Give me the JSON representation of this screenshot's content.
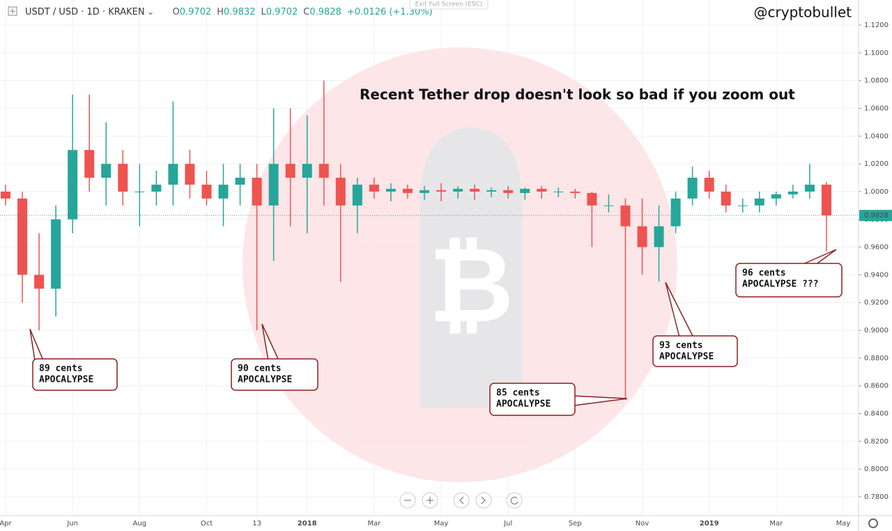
{
  "chart_data": {
    "type": "candlestick",
    "header": {
      "symbol": "USDT / USD · 1D · KRAKEN",
      "ohlc_labels": [
        "O",
        "H",
        "L",
        "C"
      ],
      "ohlc_values": [
        0.9702,
        0.9832,
        0.9702,
        0.9828
      ],
      "change": "+0.0126 (+1.30%)"
    },
    "exit_hint": "Exit Full Screen (ESC)",
    "watermark": "@cryptobullet",
    "title": "Recent Tether drop doesn't look so bad if you zoom out",
    "categories": [
      "Apr",
      null,
      null,
      null,
      "Jun",
      null,
      null,
      null,
      "Aug",
      null,
      null,
      null,
      "Oct",
      null,
      null,
      "13",
      null,
      null,
      "2018",
      null,
      null,
      null,
      "Mar",
      null,
      null,
      null,
      "May",
      null,
      null,
      null,
      "Jul",
      null,
      null,
      null,
      "Sep",
      null,
      null,
      null,
      "Nov",
      null,
      null,
      null,
      "2019",
      null,
      null,
      null,
      "Mar",
      null,
      null,
      null,
      "May"
    ],
    "open": [
      1.0,
      0.995,
      0.94,
      0.93,
      0.98,
      1.03,
      1.01,
      1.02,
      1.0,
      1.0,
      1.005,
      1.02,
      1.005,
      0.995,
      1.005,
      1.01,
      0.99,
      1.02,
      1.01,
      1.02,
      1.01,
      0.99,
      1.005,
      1.0,
      1.002,
      0.999,
      1.001,
      1.0,
      1.002,
      1.0,
      1.001,
      0.999,
      1.002,
      1.0,
      1.0,
      0.999,
      0.99,
      0.99,
      0.975,
      0.96,
      0.975,
      0.995,
      1.01,
      1.0,
      0.99,
      0.99,
      0.995,
      0.998,
      1.0,
      1.005,
      null
    ],
    "high": [
      1.005,
      1.0,
      0.97,
      0.99,
      1.07,
      1.07,
      1.05,
      1.03,
      1.02,
      1.015,
      1.065,
      1.03,
      1.015,
      1.02,
      1.02,
      1.02,
      1.06,
      1.06,
      1.055,
      1.08,
      1.02,
      1.01,
      1.01,
      1.006,
      1.005,
      1.004,
      1.006,
      1.004,
      1.005,
      1.003,
      1.004,
      1.003,
      1.004,
      1.003,
      1.002,
      1.0,
      0.998,
      0.995,
      0.995,
      0.99,
      1.0,
      1.018,
      1.015,
      1.005,
      0.995,
      1.0,
      1.0,
      1.005,
      1.02,
      1.007,
      null
    ],
    "low": [
      0.99,
      0.92,
      0.9,
      0.91,
      0.97,
      1.0,
      0.99,
      0.99,
      0.975,
      0.99,
      0.99,
      0.995,
      0.99,
      0.975,
      0.99,
      0.9,
      0.95,
      0.975,
      0.97,
      0.99,
      0.935,
      0.97,
      0.995,
      0.993,
      0.995,
      0.994,
      0.993,
      0.995,
      0.994,
      0.996,
      0.995,
      0.994,
      0.995,
      0.996,
      0.995,
      0.96,
      0.985,
      0.85,
      0.94,
      0.935,
      0.97,
      0.99,
      0.995,
      0.985,
      0.985,
      0.985,
      0.99,
      0.995,
      0.995,
      0.957,
      null
    ],
    "close": [
      0.995,
      0.94,
      0.93,
      0.98,
      1.03,
      1.01,
      1.02,
      1.0,
      1.0,
      1.005,
      1.02,
      1.005,
      0.995,
      1.005,
      1.01,
      0.99,
      1.02,
      1.01,
      1.02,
      1.01,
      0.99,
      1.005,
      1.0,
      1.002,
      0.999,
      1.001,
      1.0,
      1.002,
      1.0,
      1.001,
      0.999,
      1.002,
      1.0,
      1.0,
      0.999,
      0.99,
      0.99,
      0.975,
      0.96,
      0.975,
      0.995,
      1.01,
      1.0,
      0.99,
      0.99,
      0.995,
      0.998,
      1.0,
      1.005,
      0.9828,
      null
    ],
    "up_color": "#26a69a",
    "down_color": "#ef5350",
    "last_price": 0.9828,
    "ylim": [
      0.7664,
      1.1381
    ],
    "yticks": [
      {
        "value": 1.12,
        "label": "1.1200"
      },
      {
        "value": 1.1,
        "label": "1.1000"
      },
      {
        "value": 1.08,
        "label": "1.0800"
      },
      {
        "value": 1.06,
        "label": "1.0600"
      },
      {
        "value": 1.04,
        "label": "1.0400"
      },
      {
        "value": 1.02,
        "label": "1.0200"
      },
      {
        "value": 1.0,
        "label": "1.0000"
      },
      {
        "value": 0.98,
        "label": "0.9800"
      },
      {
        "value": 0.96,
        "label": "0.9600"
      },
      {
        "value": 0.94,
        "label": "0.9400"
      },
      {
        "value": 0.92,
        "label": "0.9200"
      },
      {
        "value": 0.9,
        "label": "0.9000"
      },
      {
        "value": 0.88,
        "label": "0.8800"
      },
      {
        "value": 0.86,
        "label": "0.8600"
      },
      {
        "value": 0.84,
        "label": "0.8400"
      },
      {
        "value": 0.82,
        "label": "0.8200"
      },
      {
        "value": 0.8,
        "label": "0.8000"
      },
      {
        "value": 0.78,
        "label": "0.7800"
      }
    ],
    "grid": true,
    "annotations": [
      [
        "89 cents",
        "APOCALYPSE"
      ],
      [
        "90 cents",
        "APOCALYPSE"
      ],
      [
        "85 cents",
        "APOCALYPSE"
      ],
      [
        "93 cents",
        "APOCALYPSE"
      ],
      [
        "96 cents",
        "APOCALYPSE ???"
      ]
    ]
  }
}
